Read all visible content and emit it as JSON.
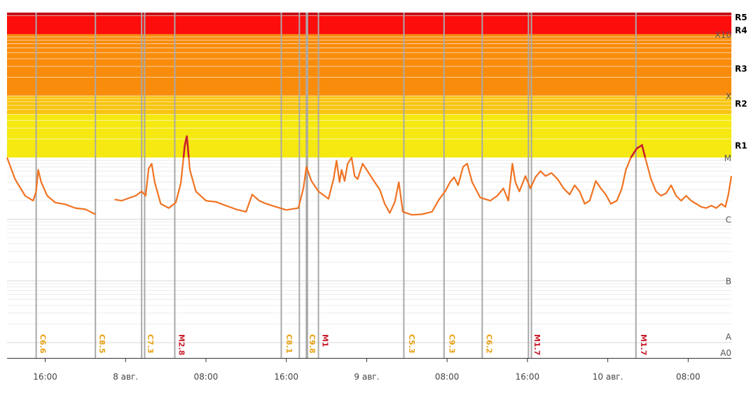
{
  "chart_data": {
    "type": "line",
    "title": "",
    "x_unit": "hours",
    "x_ticks": [
      {
        "x": 16,
        "label": "16:00"
      },
      {
        "x": 24,
        "label": "8 авг."
      },
      {
        "x": 32,
        "label": "08:00"
      },
      {
        "x": 40,
        "label": "16:00"
      },
      {
        "x": 48,
        "label": "9 авг."
      },
      {
        "x": 56,
        "label": "08:00"
      },
      {
        "x": 64,
        "label": "16:00"
      },
      {
        "x": 72,
        "label": "10 авг."
      },
      {
        "x": 80,
        "label": "08:00"
      }
    ],
    "xlim": [
      12.2,
      84.3
    ],
    "yscale": "log",
    "ylim": [
      -8.25,
      -2.65
    ],
    "flux_classes": [
      {
        "label": "A0",
        "log": -8
      },
      {
        "label": "A",
        "log": -7.9
      },
      {
        "label": "B",
        "log": -7
      },
      {
        "label": "C",
        "log": -6
      },
      {
        "label": "M",
        "log": -5
      },
      {
        "label": "X",
        "log": -4
      },
      {
        "label": "X10",
        "log": -3
      }
    ],
    "radio_blackout_scale": [
      {
        "label": "R1",
        "log_min": -5.0,
        "color": "#f5e911"
      },
      {
        "label": "R2",
        "log_min": -4.3,
        "color": "#f9c40e"
      },
      {
        "label": "R3",
        "log_min": -4.0,
        "color": "#fa8c0c"
      },
      {
        "label": "R4",
        "log_min": -3.0,
        "color": "#fd0d0b"
      },
      {
        "label": "R5",
        "log_min": -2.7,
        "color": "#c20e12"
      }
    ],
    "series": [
      {
        "color": "#f07322",
        "peak_color": "#c9202d",
        "segments": [
          [
            [
              12.2,
              -5.0
            ],
            [
              13.0,
              -5.35
            ],
            [
              14.0,
              -5.62
            ],
            [
              14.8,
              -5.7
            ],
            [
              15.1,
              -5.55
            ],
            [
              15.3,
              -5.2
            ],
            [
              15.6,
              -5.4
            ],
            [
              16.2,
              -5.62
            ],
            [
              17.0,
              -5.73
            ],
            [
              18.0,
              -5.76
            ],
            [
              19.0,
              -5.82
            ],
            [
              20.0,
              -5.84
            ],
            [
              21.0,
              -5.92
            ]
          ],
          [
            [
              22.9,
              -5.68
            ],
            [
              23.6,
              -5.7
            ],
            [
              24.3,
              -5.66
            ],
            [
              25.0,
              -5.62
            ],
            [
              25.6,
              -5.55
            ],
            [
              26.0,
              -5.62
            ],
            [
              26.3,
              -5.18
            ],
            [
              26.6,
              -5.1
            ],
            [
              26.9,
              -5.4
            ],
            [
              27.5,
              -5.75
            ],
            [
              28.3,
              -5.82
            ],
            [
              29.0,
              -5.73
            ],
            [
              29.5,
              -5.42
            ],
            [
              29.9,
              -4.8
            ],
            [
              30.1,
              -4.65
            ],
            [
              30.4,
              -5.2
            ],
            [
              31.0,
              -5.55
            ],
            [
              32.0,
              -5.7
            ],
            [
              33.0,
              -5.72
            ],
            [
              34.0,
              -5.78
            ],
            [
              35.0,
              -5.84
            ],
            [
              36.0,
              -5.88
            ],
            [
              36.6,
              -5.6
            ],
            [
              37.3,
              -5.7
            ],
            [
              38.0,
              -5.75
            ],
            [
              39.0,
              -5.8
            ],
            [
              40.0,
              -5.85
            ],
            [
              41.2,
              -5.82
            ],
            [
              41.7,
              -5.5
            ],
            [
              42.0,
              -5.15
            ],
            [
              42.5,
              -5.38
            ],
            [
              43.2,
              -5.55
            ],
            [
              44.2,
              -5.67
            ],
            [
              44.7,
              -5.35
            ],
            [
              45.0,
              -5.05
            ],
            [
              45.3,
              -5.4
            ],
            [
              45.5,
              -5.2
            ],
            [
              45.8,
              -5.38
            ],
            [
              46.1,
              -5.1
            ],
            [
              46.5,
              -5.0
            ],
            [
              46.8,
              -5.3
            ],
            [
              47.1,
              -5.35
            ],
            [
              47.6,
              -5.1
            ],
            [
              48.2,
              -5.25
            ],
            [
              48.8,
              -5.4
            ],
            [
              49.3,
              -5.52
            ],
            [
              49.8,
              -5.75
            ],
            [
              50.3,
              -5.9
            ],
            [
              50.8,
              -5.72
            ],
            [
              51.2,
              -5.4
            ],
            [
              51.6,
              -5.88
            ],
            [
              52.5,
              -5.93
            ],
            [
              53.5,
              -5.92
            ],
            [
              54.5,
              -5.88
            ],
            [
              55.2,
              -5.68
            ],
            [
              55.8,
              -5.55
            ],
            [
              56.3,
              -5.4
            ],
            [
              56.7,
              -5.32
            ],
            [
              57.1,
              -5.45
            ],
            [
              57.6,
              -5.15
            ],
            [
              58.0,
              -5.1
            ],
            [
              58.5,
              -5.4
            ],
            [
              59.3,
              -5.65
            ],
            [
              60.3,
              -5.7
            ],
            [
              61.0,
              -5.62
            ],
            [
              61.6,
              -5.5
            ],
            [
              62.1,
              -5.7
            ],
            [
              62.5,
              -5.1
            ],
            [
              62.8,
              -5.4
            ],
            [
              63.2,
              -5.55
            ],
            [
              63.8,
              -5.3
            ],
            [
              64.3,
              -5.5
            ],
            [
              64.8,
              -5.32
            ],
            [
              65.3,
              -5.22
            ],
            [
              65.8,
              -5.3
            ],
            [
              66.4,
              -5.25
            ],
            [
              67.0,
              -5.35
            ],
            [
              67.6,
              -5.5
            ],
            [
              68.2,
              -5.6
            ],
            [
              68.7,
              -5.45
            ],
            [
              69.2,
              -5.55
            ],
            [
              69.7,
              -5.75
            ],
            [
              70.2,
              -5.7
            ],
            [
              70.8,
              -5.38
            ],
            [
              71.3,
              -5.5
            ],
            [
              71.8,
              -5.6
            ],
            [
              72.3,
              -5.75
            ],
            [
              72.9,
              -5.7
            ],
            [
              73.4,
              -5.5
            ],
            [
              73.8,
              -5.2
            ],
            [
              74.3,
              -5.0
            ],
            [
              74.9,
              -4.85
            ],
            [
              75.4,
              -4.8
            ],
            [
              75.8,
              -5.05
            ],
            [
              76.3,
              -5.35
            ],
            [
              76.8,
              -5.55
            ],
            [
              77.3,
              -5.62
            ],
            [
              77.8,
              -5.58
            ],
            [
              78.3,
              -5.45
            ],
            [
              78.8,
              -5.62
            ],
            [
              79.3,
              -5.7
            ],
            [
              79.8,
              -5.62
            ],
            [
              80.3,
              -5.7
            ],
            [
              80.8,
              -5.75
            ],
            [
              81.3,
              -5.8
            ],
            [
              81.8,
              -5.82
            ],
            [
              82.3,
              -5.78
            ],
            [
              82.8,
              -5.82
            ],
            [
              83.3,
              -5.75
            ],
            [
              83.7,
              -5.8
            ],
            [
              84.0,
              -5.6
            ],
            [
              84.3,
              -5.3
            ]
          ]
        ]
      }
    ],
    "flares": [
      {
        "label": "C6.6",
        "x": 15.1,
        "color": "#e8a316"
      },
      {
        "label": "C8.5",
        "x": 21.0,
        "color": "#e8a316"
      },
      {
        "label": "C7.3",
        "x": 25.8,
        "color": "#e8a316"
      },
      {
        "label": "M2.8",
        "x": 28.9,
        "color": "#c9202d"
      },
      {
        "label": "C8.1",
        "x": 39.6,
        "color": "#e8a316"
      },
      {
        "label": "C9.8",
        "x": 41.9,
        "color": "#e8a316"
      },
      {
        "label": "M1",
        "x": 43.2,
        "color": "#c9202d"
      },
      {
        "label": "C5.3",
        "x": 51.8,
        "color": "#e8a316"
      },
      {
        "label": "C9.3",
        "x": 55.8,
        "color": "#e8a316"
      },
      {
        "label": "C6.2",
        "x": 59.5,
        "color": "#e8a316"
      },
      {
        "label": "M1.7",
        "x": 64.3,
        "color": "#c9202d"
      },
      {
        "label": "M1.7",
        "x": 74.9,
        "color": "#c9202d"
      }
    ],
    "flare_lines": [
      15.1,
      21.0,
      25.6,
      25.9,
      28.9,
      39.5,
      41.3,
      42.0,
      42.1,
      43.2,
      51.7,
      55.7,
      59.5,
      64.1,
      64.4,
      74.8
    ],
    "grid": true
  }
}
